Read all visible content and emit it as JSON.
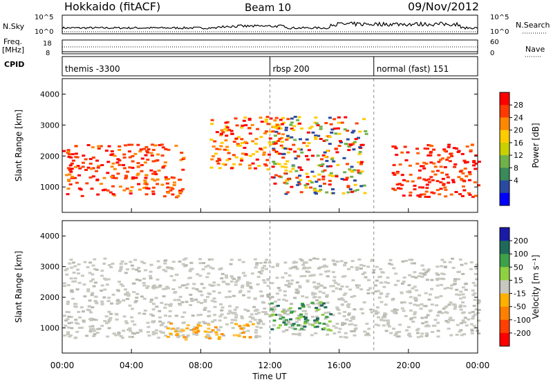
{
  "header": {
    "station": "Hokkaido (fitACF)",
    "beam": "Beam 10",
    "date": "09/Nov/2012"
  },
  "sky_panel": {
    "left_label": "N.Sky",
    "left_ticks": [
      "10^5",
      "10^0"
    ],
    "right_ticks": [
      "10^5",
      "10^0"
    ],
    "right_label": "N.Search"
  },
  "freq_panel": {
    "left_label_1": "Freq.",
    "left_label_2": "[MHz]",
    "left_ticks": [
      "18",
      "8"
    ],
    "right_ticks": [
      "60",
      "0"
    ],
    "right_label": "Nave"
  },
  "cpid_panel": {
    "label": "CPID",
    "segments": [
      {
        "name": "themis -3300",
        "start_hour": 0
      },
      {
        "name": "rbsp 200",
        "start_hour": 12
      },
      {
        "name": "normal (fast) 151",
        "start_hour": 18
      }
    ]
  },
  "chart_data": [
    {
      "type": "heatmap",
      "ylabel": "Slant Range [km]",
      "ylim": [
        180,
        4500
      ],
      "yticks": [
        1000,
        2000,
        3000,
        4000
      ],
      "xlim": [
        0,
        24
      ],
      "colorbar": {
        "label": "Power [dB]",
        "ticks": [
          "28",
          "24",
          "20",
          "16",
          "12",
          "8",
          "4"
        ],
        "colors": [
          "#ff0000",
          "#ff3a00",
          "#ff8800",
          "#ffcc00",
          "#c8d000",
          "#6fb24a",
          "#3b8a5a",
          "#2a4aa0",
          "#0000ff"
        ]
      },
      "echo_regions": [
        {
          "hours": [
            0,
            7
          ],
          "range_km": [
            700,
            2400
          ],
          "level": "28 dB"
        },
        {
          "hours": [
            8.5,
            13
          ],
          "range_km": [
            1600,
            3300
          ],
          "level": "28 dB"
        },
        {
          "hours": [
            12,
            17.5
          ],
          "range_km": [
            800,
            3300
          ],
          "level": "24-28 dB"
        },
        {
          "hours": [
            19,
            24
          ],
          "range_km": [
            700,
            2400
          ],
          "level": "28 dB"
        }
      ]
    },
    {
      "type": "heatmap",
      "ylabel": "Slant Range [km]",
      "ylim": [
        180,
        4500
      ],
      "yticks": [
        1000,
        2000,
        3000,
        4000
      ],
      "xlim": [
        0,
        24
      ],
      "xticks": [
        "00:00",
        "04:00",
        "08:00",
        "12:00",
        "16:00",
        "20:00",
        "00:00"
      ],
      "xlabel": "Time UT",
      "colorbar": {
        "label": "Velocity [m s⁻¹]",
        "ticks": [
          "200",
          "100",
          "50",
          "15",
          "-15",
          "-50",
          "-100",
          "-200"
        ],
        "colors": [
          "#1a1aa8",
          "#1f6a5a",
          "#3ea048",
          "#8fd040",
          "#c8c8c0",
          "#ffb000",
          "#ff8000",
          "#ff4000",
          "#ff0000"
        ]
      },
      "echo_regions": [
        {
          "hours": [
            0,
            24
          ],
          "range_km": [
            700,
            3300
          ],
          "level": "-15 to 15 m/s"
        },
        {
          "hours": [
            6,
            11
          ],
          "range_km": [
            650,
            1200
          ],
          "level": "-50 m/s"
        },
        {
          "hours": [
            12,
            15.5
          ],
          "range_km": [
            900,
            1900
          ],
          "level": "50 m/s"
        }
      ]
    }
  ]
}
